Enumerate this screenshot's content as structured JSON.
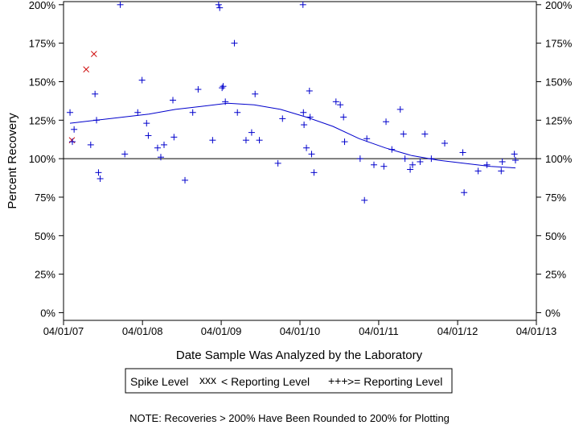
{
  "chart_data": {
    "type": "scatter",
    "xlabel": "Date Sample Was Analyzed by the Laboratory",
    "ylabel": "Percent Recovery",
    "x_ticks": [
      "04/01/07",
      "04/01/08",
      "04/01/09",
      "04/01/10",
      "04/01/11",
      "04/01/12",
      "04/01/13"
    ],
    "y_ticks": [
      "0%",
      "25%",
      "50%",
      "75%",
      "100%",
      "125%",
      "150%",
      "175%",
      "200%"
    ],
    "xlim": [
      "2007-04-01",
      "2013-04-01"
    ],
    "ylim": [
      -5,
      202
    ],
    "reference_line": 100,
    "legend": {
      "title": "Spike Level",
      "entries": [
        {
          "marker": "xxx",
          "label": "< Reporting Level",
          "color": "#cc0000"
        },
        {
          "marker": "+++",
          "label": ">= Reporting Level",
          "color": "#0000cc"
        }
      ],
      "placement": "bottom-center"
    },
    "note": "NOTE: Recoveries > 200% Have Been Rounded to 200% for Plotting",
    "series": [
      {
        "label": "< Reporting Level",
        "marker": "x",
        "color": "#cc0000",
        "points": [
          [
            "2007-05-10",
            112
          ],
          [
            "2007-07-15",
            158
          ],
          [
            "2007-08-20",
            168
          ]
        ]
      },
      {
        "label": ">= Reporting Level",
        "marker": "+",
        "color": "#0000cc",
        "points": [
          [
            "2007-05-01",
            130
          ],
          [
            "2007-05-12",
            111
          ],
          [
            "2007-05-20",
            119
          ],
          [
            "2007-08-05",
            109
          ],
          [
            "2007-08-25",
            142
          ],
          [
            "2007-09-01",
            125
          ],
          [
            "2007-09-10",
            91
          ],
          [
            "2007-09-18",
            87
          ],
          [
            "2007-12-20",
            200
          ],
          [
            "2008-01-10",
            103
          ],
          [
            "2008-03-10",
            130
          ],
          [
            "2008-03-30",
            151
          ],
          [
            "2008-04-20",
            123
          ],
          [
            "2008-04-28",
            115
          ],
          [
            "2008-06-10",
            107
          ],
          [
            "2008-06-25",
            101
          ],
          [
            "2008-07-10",
            109
          ],
          [
            "2008-08-20",
            138
          ],
          [
            "2008-08-25",
            114
          ],
          [
            "2008-10-15",
            86
          ],
          [
            "2008-11-20",
            130
          ],
          [
            "2008-12-15",
            145
          ],
          [
            "2009-02-20",
            112
          ],
          [
            "2009-03-20",
            200
          ],
          [
            "2009-03-25",
            198
          ],
          [
            "2009-04-05",
            146
          ],
          [
            "2009-04-10",
            147
          ],
          [
            "2009-04-20",
            137
          ],
          [
            "2009-06-01",
            175
          ],
          [
            "2009-06-15",
            130
          ],
          [
            "2009-07-25",
            112
          ],
          [
            "2009-08-20",
            117
          ],
          [
            "2009-09-05",
            142
          ],
          [
            "2009-09-25",
            112
          ],
          [
            "2009-12-20",
            97
          ],
          [
            "2010-01-10",
            126
          ],
          [
            "2010-04-15",
            200
          ],
          [
            "2010-04-17",
            130
          ],
          [
            "2010-04-20",
            122
          ],
          [
            "2010-05-01",
            107
          ],
          [
            "2010-05-15",
            144
          ],
          [
            "2010-05-18",
            127
          ],
          [
            "2010-05-25",
            103
          ],
          [
            "2010-06-05",
            91
          ],
          [
            "2010-09-15",
            137
          ],
          [
            "2010-10-05",
            135
          ],
          [
            "2010-10-20",
            127
          ],
          [
            "2010-10-25",
            111
          ],
          [
            "2011-01-05",
            100
          ],
          [
            "2011-01-25",
            73
          ],
          [
            "2011-02-05",
            113
          ],
          [
            "2011-03-10",
            96
          ],
          [
            "2011-04-25",
            95
          ],
          [
            "2011-05-05",
            124
          ],
          [
            "2011-06-01",
            106
          ],
          [
            "2011-07-10",
            132
          ],
          [
            "2011-07-25",
            116
          ],
          [
            "2011-08-01",
            100
          ],
          [
            "2011-08-25",
            93
          ],
          [
            "2011-09-05",
            96
          ],
          [
            "2011-10-10",
            98
          ],
          [
            "2011-11-01",
            116
          ],
          [
            "2011-12-01",
            100
          ],
          [
            "2012-02-01",
            110
          ],
          [
            "2012-04-25",
            104
          ],
          [
            "2012-05-01",
            78
          ],
          [
            "2012-07-05",
            92
          ],
          [
            "2012-08-15",
            96
          ],
          [
            "2012-10-20",
            92
          ],
          [
            "2012-10-25",
            98
          ],
          [
            "2012-12-20",
            103
          ],
          [
            "2012-12-25",
            99
          ]
        ]
      }
    ],
    "trend_line": {
      "color": "#0000cc",
      "points": [
        [
          "2007-05-01",
          123
        ],
        [
          "2007-09-01",
          125
        ],
        [
          "2008-01-01",
          127
        ],
        [
          "2008-05-01",
          129
        ],
        [
          "2008-09-01",
          132
        ],
        [
          "2009-01-01",
          134
        ],
        [
          "2009-05-01",
          136
        ],
        [
          "2009-09-01",
          135
        ],
        [
          "2010-01-01",
          132
        ],
        [
          "2010-05-01",
          127
        ],
        [
          "2010-09-01",
          121
        ],
        [
          "2011-01-01",
          113
        ],
        [
          "2011-05-01",
          107
        ],
        [
          "2011-09-01",
          102
        ],
        [
          "2012-01-01",
          99
        ],
        [
          "2012-05-01",
          97
        ],
        [
          "2012-09-01",
          95
        ],
        [
          "2012-12-25",
          94
        ]
      ]
    }
  }
}
